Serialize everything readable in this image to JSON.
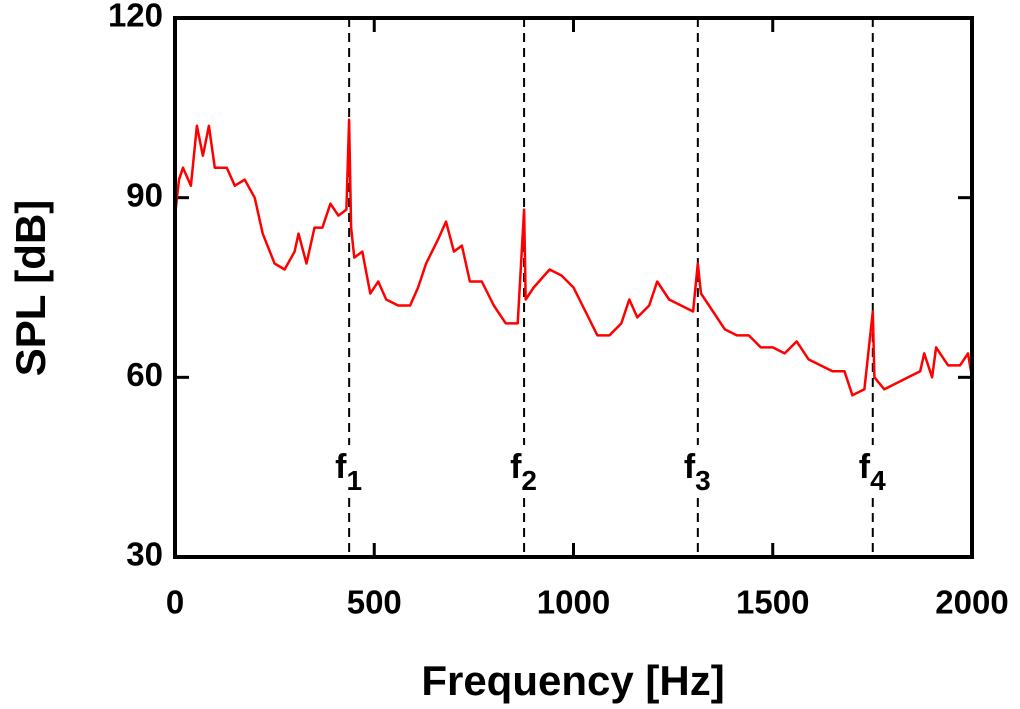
{
  "chart_data": {
    "type": "line",
    "x_label": "Frequency [Hz]",
    "y_label": "SPL [dB]",
    "xlim": [
      0,
      2000
    ],
    "ylim": [
      30,
      120
    ],
    "xticks": [
      0,
      500,
      1000,
      1500,
      2000
    ],
    "yticks": [
      30,
      60,
      90,
      120
    ],
    "grid": false,
    "x": [
      0,
      10,
      20,
      40,
      55,
      70,
      85,
      100,
      130,
      150,
      175,
      200,
      220,
      250,
      275,
      300,
      310,
      330,
      350,
      370,
      390,
      410,
      430,
      437,
      442,
      450,
      470,
      490,
      510,
      530,
      560,
      590,
      610,
      630,
      660,
      680,
      700,
      720,
      740,
      770,
      800,
      830,
      860,
      876,
      880,
      900,
      940,
      970,
      1000,
      1030,
      1060,
      1090,
      1120,
      1140,
      1160,
      1190,
      1210,
      1240,
      1270,
      1300,
      1312,
      1320,
      1350,
      1380,
      1410,
      1440,
      1470,
      1500,
      1530,
      1560,
      1590,
      1620,
      1650,
      1680,
      1700,
      1730,
      1751,
      1755,
      1780,
      1810,
      1840,
      1870,
      1880,
      1900,
      1910,
      1940,
      1970,
      1990,
      2000
    ],
    "series": [
      {
        "color": "#ff0000",
        "values": [
          87,
          93,
          95,
          92,
          102,
          97,
          102,
          95,
          95,
          92,
          93,
          90,
          84,
          79,
          78,
          81,
          84,
          79,
          85,
          85,
          89,
          87,
          88,
          103,
          85,
          80,
          81,
          74,
          76,
          73,
          72,
          72,
          75,
          79,
          83,
          86,
          81,
          82,
          76,
          76,
          72,
          69,
          69,
          88,
          73,
          75,
          78,
          77,
          75,
          71,
          67,
          67,
          69,
          73,
          70,
          72,
          76,
          73,
          72,
          71,
          79,
          74,
          71,
          68,
          67,
          67,
          65,
          65,
          64,
          66,
          63,
          62,
          61,
          61,
          57,
          58,
          71,
          60,
          58,
          59,
          60,
          61,
          64,
          60,
          65,
          62,
          62,
          64,
          60
        ]
      }
    ],
    "annotations": [
      {
        "label": "f",
        "subscript": "1",
        "x": 437
      },
      {
        "label": "f",
        "subscript": "2",
        "x": 876
      },
      {
        "label": "f",
        "subscript": "3",
        "x": 1312
      },
      {
        "label": "f",
        "subscript": "4",
        "x": 1751
      }
    ]
  }
}
